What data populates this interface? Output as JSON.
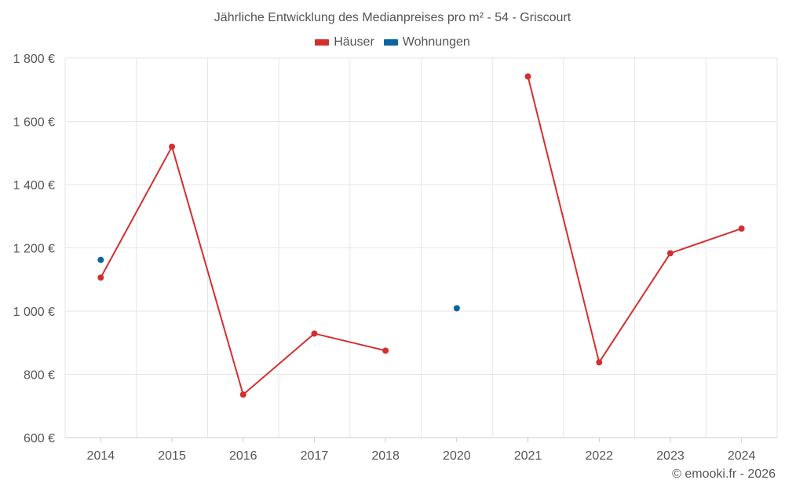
{
  "chart_data": {
    "type": "line",
    "title": "Jährliche Entwicklung des Medianpreises pro m² - 54 - Griscourt",
    "categories": [
      "2014",
      "2015",
      "2016",
      "2017",
      "2018",
      "2020",
      "2021",
      "2022",
      "2023",
      "2024"
    ],
    "series": [
      {
        "name": "Häuser",
        "color": "#d32f2f",
        "values": [
          1106,
          1520,
          736,
          929,
          875,
          null,
          1742,
          838,
          1183,
          1261
        ]
      },
      {
        "name": "Wohnungen",
        "color": "#0b64a0",
        "values": [
          1162,
          null,
          null,
          null,
          null,
          1009,
          null,
          null,
          null,
          null
        ]
      }
    ],
    "ylim": [
      600,
      1800
    ],
    "yticks": [
      600,
      800,
      1000,
      1200,
      1400,
      1600,
      1800
    ],
    "ytick_labels": [
      "600 €",
      "800 €",
      "1 000 €",
      "1 200 €",
      "1 400 €",
      "1 600 €",
      "1 800 €"
    ],
    "grid": true,
    "legend_position": "top-center",
    "xlabel": "",
    "ylabel": ""
  },
  "credit": "© emooki.fr - 2026"
}
